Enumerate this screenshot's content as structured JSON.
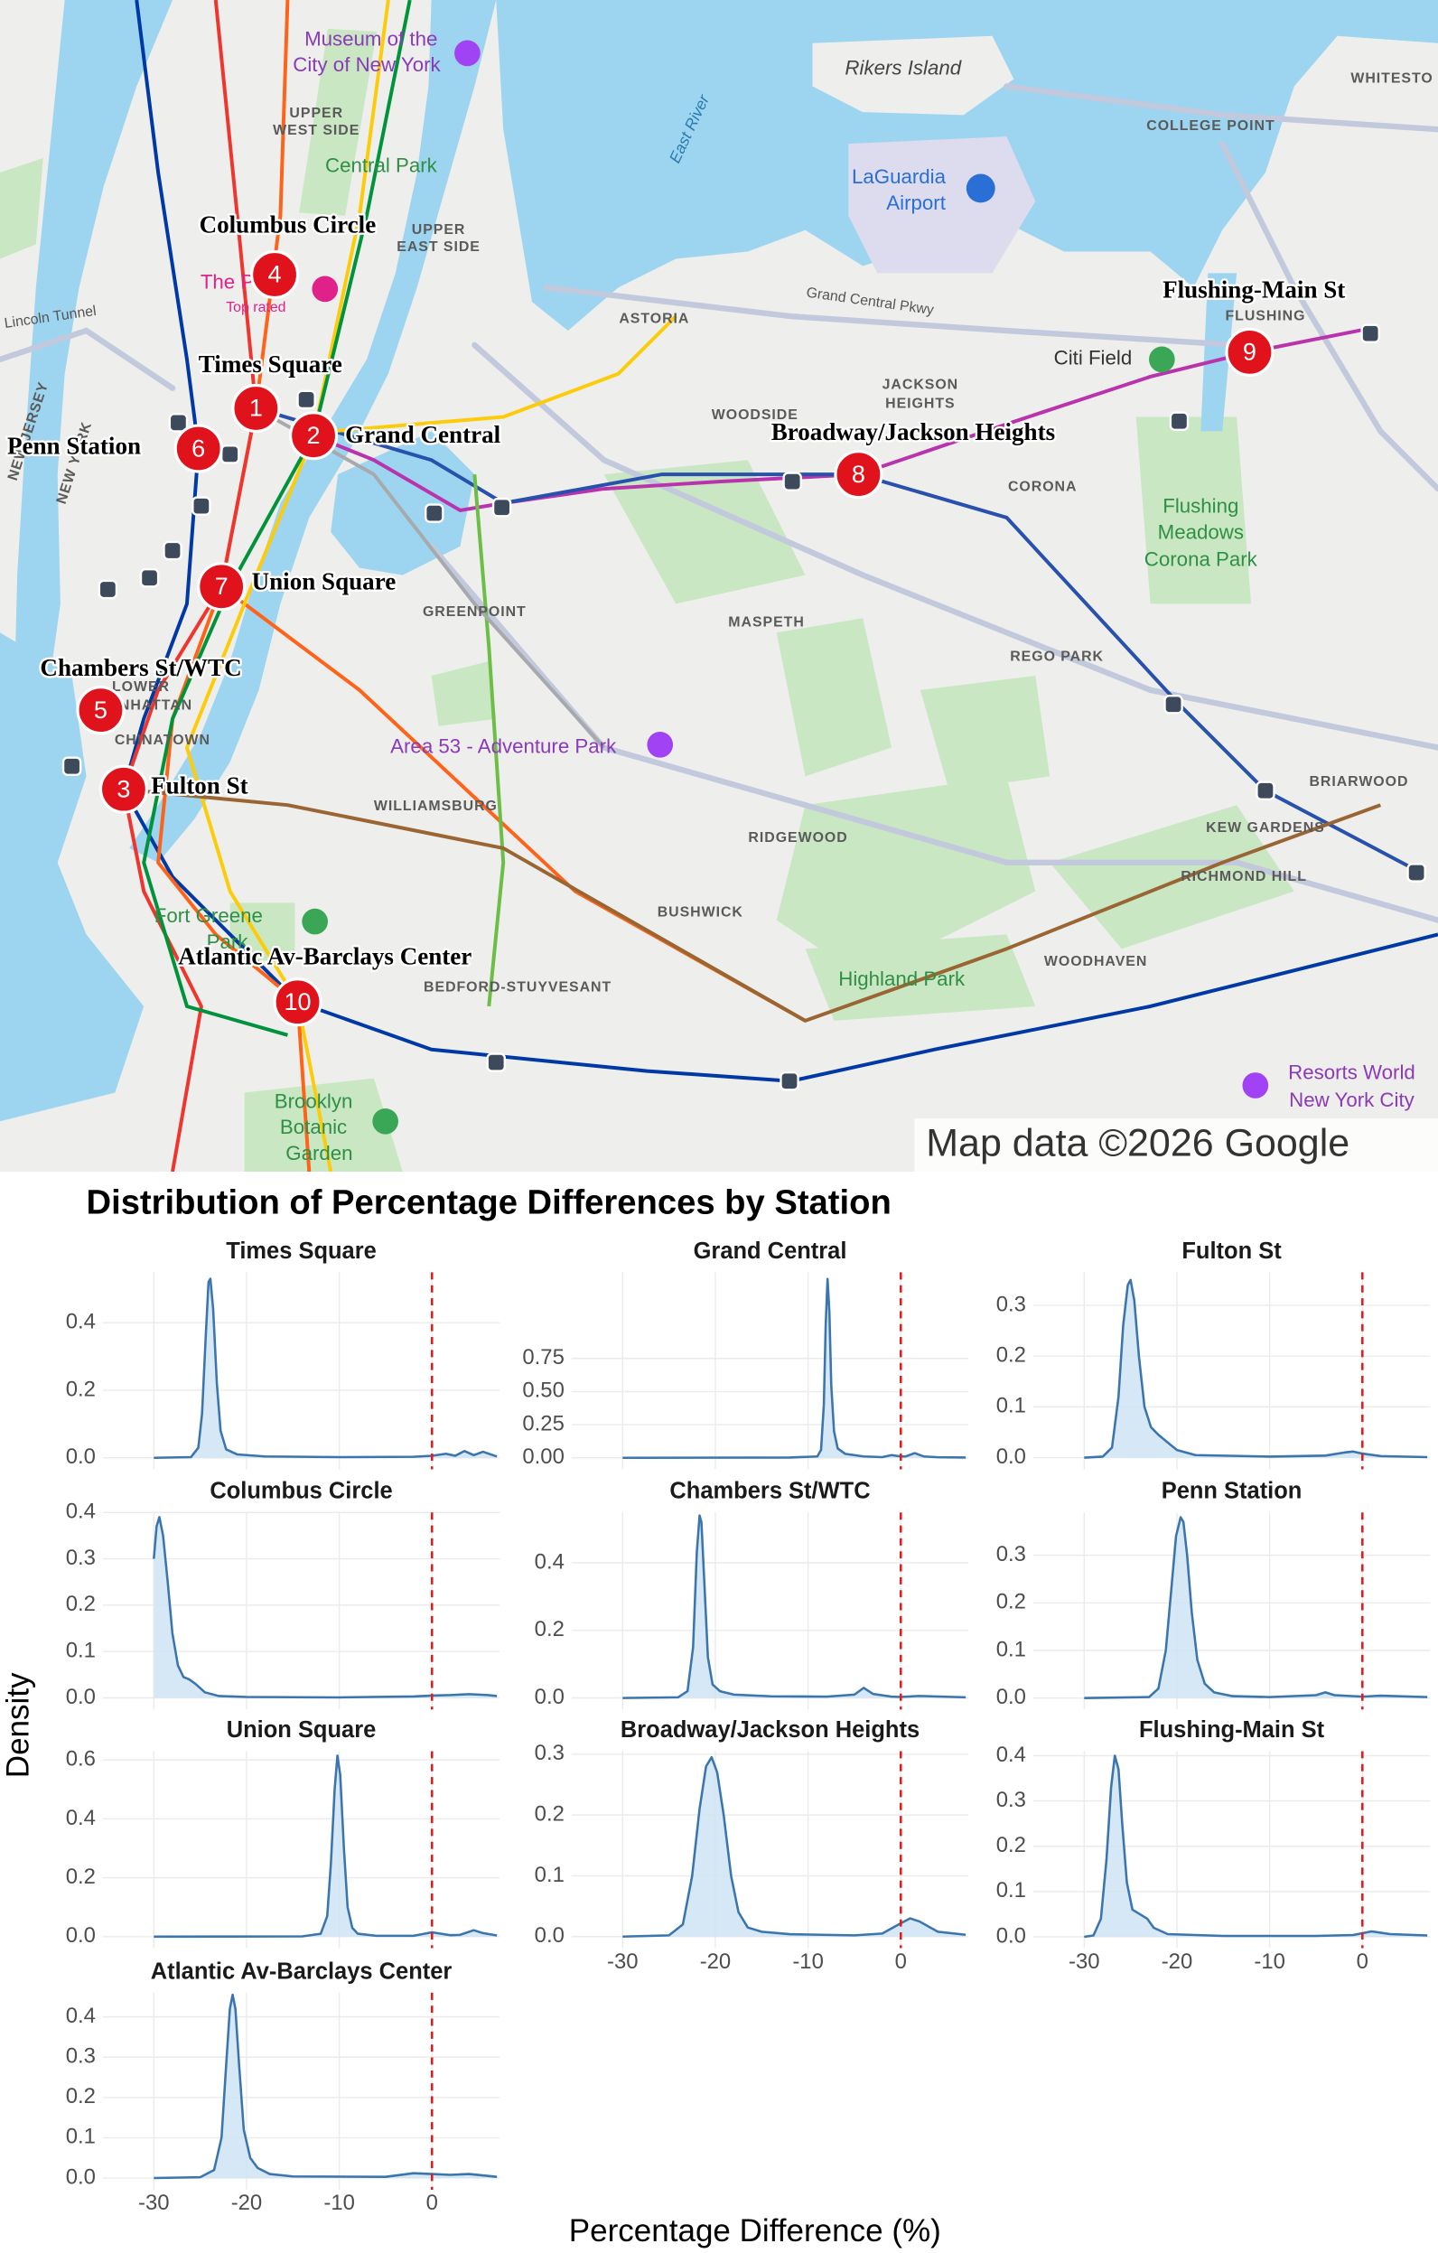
{
  "map": {
    "places": [
      "Museum of the",
      "City of New York",
      "UPPER",
      "WEST SIDE",
      "Central Park",
      "UPPER",
      "EAST SIDE",
      "Rikers Island",
      "LaGuardia",
      "Airport",
      "COLLEGE POINT",
      "WHITESTO",
      "The P",
      "Top rated",
      "Lincoln Tunnel",
      "Grand Central Pkwy",
      "ASTORIA",
      "FLUSHING",
      "Citi Field",
      "JACKSON",
      "HEIGHTS",
      "WOODSIDE",
      "NEW JERSEY",
      "NEW YORK",
      "CORONA",
      "Flushing",
      "Meadows",
      "Corona Park",
      "GREENPOINT",
      "MASPETH",
      "REGO PARK",
      "LOWER",
      "MANHATTAN",
      "CHINATOWN",
      "Area 53 - Adventure Park",
      "WILLIAMSBURG",
      "BRIARWOOD",
      "KEW GARDENS",
      "RIDGEWOOD",
      "RICHMOND HILL",
      "BUSHWICK",
      "Fort Greene",
      "Park",
      "BEDFORD-STUYVESANT",
      "WOODHAVEN",
      "Highland Park",
      "Resorts World",
      "New York City",
      "Brooklyn",
      "Botanic",
      "Garden",
      "East River",
      "COLLEGE POINT"
    ],
    "stations": [
      {
        "number": "1",
        "name": "Times Square"
      },
      {
        "number": "2",
        "name": "Grand Central"
      },
      {
        "number": "3",
        "name": "Fulton St"
      },
      {
        "number": "4",
        "name": "Columbus Circle"
      },
      {
        "number": "5",
        "name": "Chambers St/WTC"
      },
      {
        "number": "6",
        "name": "Penn Station"
      },
      {
        "number": "7",
        "name": "Union Square"
      },
      {
        "number": "8",
        "name": "Broadway/Jackson Heights"
      },
      {
        "number": "9",
        "name": "Flushing-Main St"
      },
      {
        "number": "10",
        "name": "Atlantic Av-Barclays Center"
      }
    ],
    "attribution": "Map data ©2026 Google"
  },
  "chart_data": {
    "type": "density",
    "title": "Distribution of Percentage Differences by Station",
    "x_label": "Percentage Difference (%)",
    "y_label": "Density",
    "xlim": [
      -35.5,
      7.3
    ],
    "xticks": [
      -30,
      -20,
      -10,
      0
    ],
    "reference_line": 0,
    "line_color": "#3a75ad",
    "fill_color": "#cfe4f3",
    "reference_color": "#e41a1c",
    "grid": true,
    "panels": [
      {
        "name": "Times Square",
        "ylim": [
          -0.034,
          0.549
        ],
        "yticks": [
          {
            "value": 0,
            "label": "0.0"
          },
          0.2,
          0.4
        ],
        "x": [
          -30,
          -26,
          -25.2,
          -24.8,
          -24.4,
          -24.1,
          -23.9,
          -23.6,
          -23.2,
          -22.8,
          -22.2,
          -21,
          -18,
          -10,
          -2,
          0,
          1.5,
          2.5,
          3.5,
          4.5,
          5.5,
          7
        ],
        "values": [
          0,
          0.002,
          0.03,
          0.13,
          0.36,
          0.52,
          0.53,
          0.44,
          0.22,
          0.08,
          0.025,
          0.01,
          0.004,
          0.002,
          0.003,
          0.006,
          0.012,
          0.006,
          0.02,
          0.008,
          0.018,
          0.004
        ]
      },
      {
        "name": "Grand Central",
        "ylim": [
          -0.087,
          1.4
        ],
        "yticks": [
          {
            "value": 0,
            "label": "0.00"
          },
          0.25,
          {
            "value": 0.5,
            "label": "0.50"
          },
          0.75
        ],
        "x": [
          -30,
          -12,
          -9,
          -8.6,
          -8.3,
          -8.1,
          -7.9,
          -7.7,
          -7.5,
          -7.2,
          -6.8,
          -6,
          -4,
          -2,
          -1,
          0,
          0.5,
          1.5,
          2.5,
          4,
          7
        ],
        "values": [
          0,
          0.002,
          0.01,
          0.06,
          0.4,
          1.0,
          1.35,
          1.1,
          0.55,
          0.2,
          0.07,
          0.03,
          0.01,
          0.005,
          0.02,
          0.01,
          0.01,
          0.035,
          0.01,
          0.004,
          0.002
        ]
      },
      {
        "name": "Fulton St",
        "ylim": [
          -0.023,
          0.365
        ],
        "yticks": [
          {
            "value": 0,
            "label": "0.0"
          },
          0.1,
          0.2,
          0.3
        ],
        "x": [
          -30,
          -28,
          -27,
          -26.3,
          -25.8,
          -25.3,
          -25,
          -24.6,
          -24.1,
          -23.5,
          -22.8,
          -22,
          -21,
          -20,
          -18,
          -10,
          -4,
          -2,
          -1,
          0,
          2,
          7
        ],
        "values": [
          0,
          0.002,
          0.02,
          0.12,
          0.26,
          0.34,
          0.35,
          0.31,
          0.2,
          0.1,
          0.06,
          0.045,
          0.03,
          0.015,
          0.005,
          0.002,
          0.004,
          0.01,
          0.012,
          0.008,
          0.003,
          0.001
        ]
      },
      {
        "name": "Columbus Circle",
        "ylim": [
          -0.025,
          0.4
        ],
        "yticks": [
          {
            "value": 0,
            "label": "0.0"
          },
          0.1,
          0.2,
          0.3,
          0.4
        ],
        "x": [
          -30,
          -29.7,
          -29.4,
          -29,
          -28.5,
          -28,
          -27.4,
          -26.8,
          -26.2,
          -25.5,
          -24.5,
          -23,
          -20,
          -10,
          -2,
          0,
          2,
          4,
          6,
          7
        ],
        "values": [
          0.3,
          0.37,
          0.39,
          0.35,
          0.25,
          0.14,
          0.07,
          0.045,
          0.04,
          0.03,
          0.012,
          0.004,
          0.002,
          0.001,
          0.003,
          0.005,
          0.006,
          0.008,
          0.006,
          0.004
        ]
      },
      {
        "name": "Chambers St/WTC",
        "ylim": [
          -0.034,
          0.549
        ],
        "yticks": [
          {
            "value": 0,
            "label": "0.0"
          },
          0.2,
          0.4
        ],
        "x": [
          -30,
          -24,
          -23,
          -22.4,
          -22,
          -21.7,
          -21.5,
          -21.2,
          -20.8,
          -20.3,
          -19.5,
          -18,
          -14,
          -8,
          -5,
          -4,
          -3,
          -1,
          0,
          2,
          7
        ],
        "values": [
          0,
          0.002,
          0.02,
          0.15,
          0.43,
          0.54,
          0.52,
          0.35,
          0.12,
          0.04,
          0.02,
          0.01,
          0.005,
          0.004,
          0.01,
          0.03,
          0.012,
          0.004,
          0.003,
          0.006,
          0.002
        ]
      },
      {
        "name": "Penn Station",
        "ylim": [
          -0.024,
          0.39
        ],
        "yticks": [
          {
            "value": 0,
            "label": "0.0"
          },
          0.1,
          0.2,
          0.3
        ],
        "x": [
          -30,
          -23,
          -22,
          -21.2,
          -20.6,
          -20.1,
          -19.6,
          -19.3,
          -18.9,
          -18.4,
          -17.8,
          -17,
          -16,
          -14,
          -10,
          -5,
          -4,
          -3,
          0,
          2,
          7
        ],
        "values": [
          0,
          0.002,
          0.02,
          0.1,
          0.23,
          0.34,
          0.38,
          0.37,
          0.3,
          0.18,
          0.08,
          0.03,
          0.012,
          0.004,
          0.002,
          0.006,
          0.012,
          0.006,
          0.003,
          0.005,
          0.002
        ]
      },
      {
        "name": "Union Square",
        "ylim": [
          -0.039,
          0.63
        ],
        "yticks": [
          {
            "value": 0,
            "label": "0.0"
          },
          0.2,
          0.4,
          0.6
        ],
        "x": [
          -30,
          -14,
          -12,
          -11.3,
          -10.9,
          -10.5,
          -10.2,
          -9.9,
          -9.5,
          -9.1,
          -8.6,
          -8,
          -6,
          -2,
          0,
          1,
          2,
          3,
          4.5,
          5.5,
          7
        ],
        "values": [
          0,
          0.001,
          0.01,
          0.07,
          0.25,
          0.5,
          0.615,
          0.55,
          0.3,
          0.1,
          0.03,
          0.01,
          0.003,
          0.003,
          0.015,
          0.01,
          0.005,
          0.006,
          0.022,
          0.012,
          0.004
        ]
      },
      {
        "name": "Broadway/Jackson Heights",
        "ylim": [
          -0.019,
          0.305
        ],
        "yticks": [
          {
            "value": 0,
            "label": "0.0"
          },
          0.1,
          0.2,
          0.3
        ],
        "x": [
          -30,
          -25,
          -23.5,
          -22.5,
          -21.7,
          -21,
          -20.4,
          -19.8,
          -19.1,
          -18.3,
          -17.5,
          -16.5,
          -15,
          -12,
          -5,
          -2,
          0,
          1,
          2,
          4,
          7
        ],
        "values": [
          0,
          0.002,
          0.02,
          0.1,
          0.21,
          0.28,
          0.295,
          0.27,
          0.2,
          0.1,
          0.04,
          0.015,
          0.008,
          0.004,
          0.002,
          0.005,
          0.022,
          0.03,
          0.025,
          0.008,
          0.003
        ]
      },
      {
        "name": "Flushing-Main St",
        "ylim": [
          -0.025,
          0.41
        ],
        "yticks": [
          {
            "value": 0,
            "label": "0.0"
          },
          0.1,
          0.2,
          0.3,
          0.4
        ],
        "x": [
          -30,
          -29,
          -28.2,
          -27.6,
          -27.1,
          -26.7,
          -26.3,
          -25.9,
          -25.4,
          -24.8,
          -24,
          -23.2,
          -22.5,
          -21,
          -15,
          -5,
          -1,
          0,
          1,
          3,
          7
        ],
        "values": [
          0,
          0.003,
          0.04,
          0.17,
          0.33,
          0.4,
          0.37,
          0.25,
          0.12,
          0.06,
          0.05,
          0.04,
          0.02,
          0.006,
          0.002,
          0.002,
          0.004,
          0.008,
          0.012,
          0.006,
          0.003
        ]
      },
      {
        "name": "Atlantic Av-Barclays Center",
        "ylim": [
          -0.029,
          0.46
        ],
        "yticks": [
          {
            "value": 0,
            "label": "0.0"
          },
          0.1,
          0.2,
          0.3,
          0.4
        ],
        "x": [
          -30,
          -25,
          -23.5,
          -22.7,
          -22.2,
          -21.8,
          -21.5,
          -21.2,
          -20.8,
          -20.3,
          -19.6,
          -18.8,
          -17.5,
          -15,
          -5,
          -2,
          0,
          2,
          4,
          7
        ],
        "values": [
          0,
          0.002,
          0.02,
          0.1,
          0.28,
          0.42,
          0.455,
          0.42,
          0.28,
          0.12,
          0.05,
          0.025,
          0.01,
          0.004,
          0.003,
          0.012,
          0.01,
          0.008,
          0.01,
          0.003
        ]
      }
    ]
  }
}
